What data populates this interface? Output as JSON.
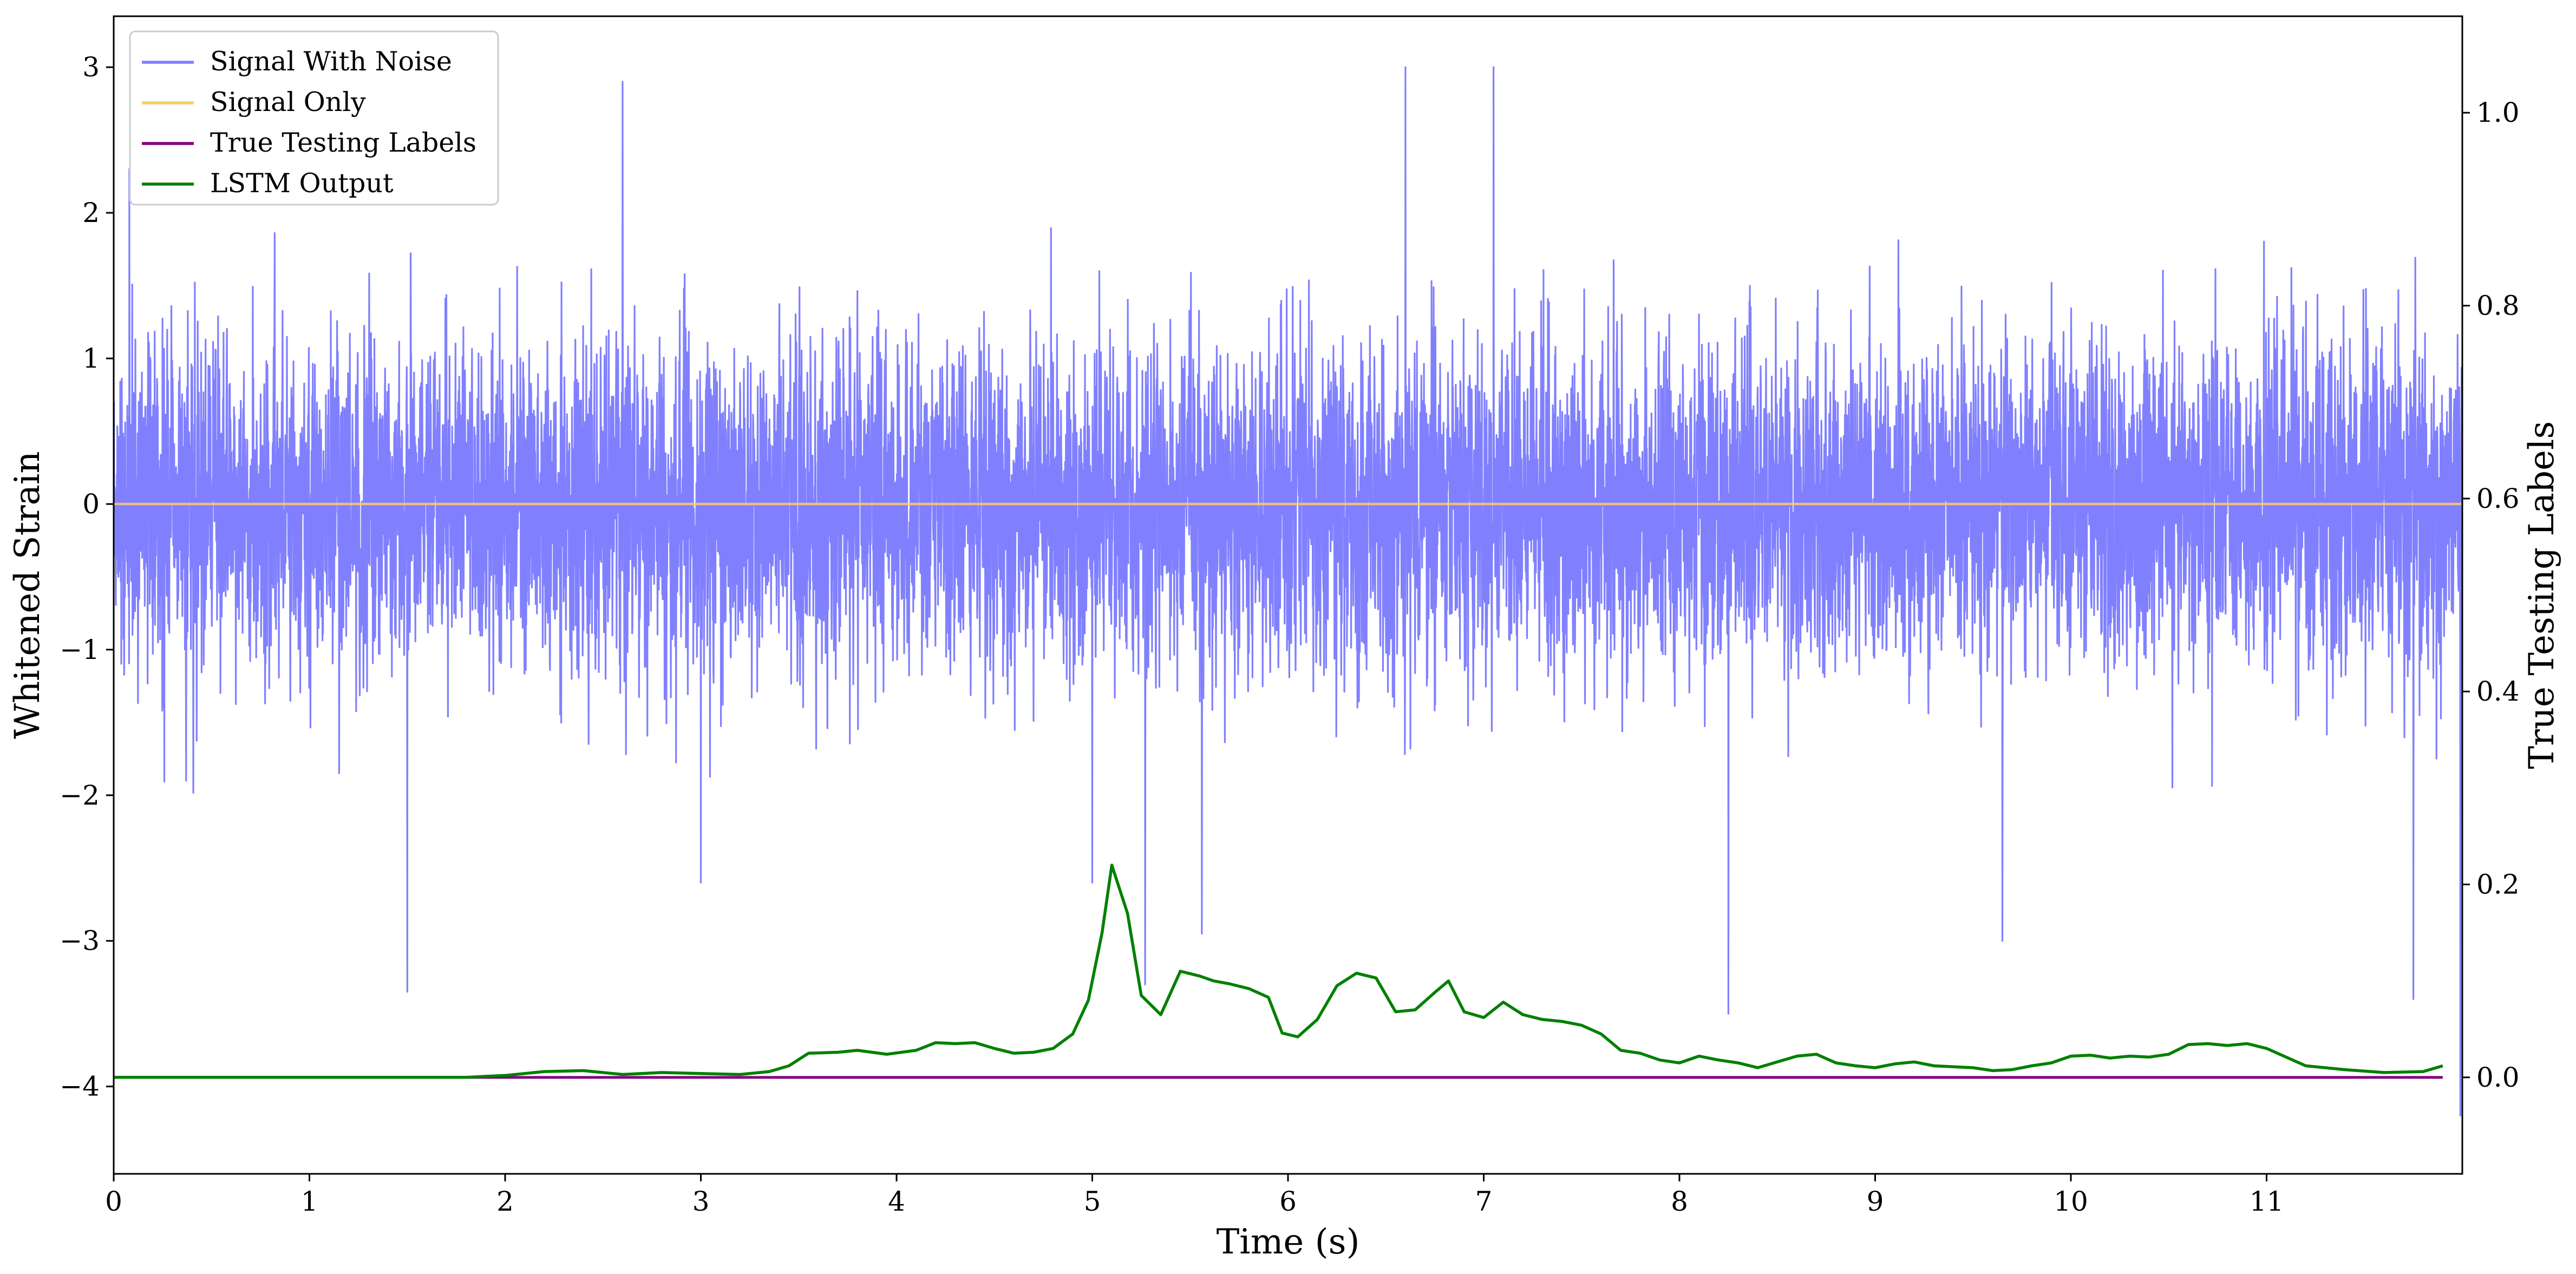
{
  "chart_data": {
    "type": "line",
    "xlabel": "Time (s)",
    "ylabel": "Whitened Strain",
    "ylabel_right": "True Testing Labels",
    "xlim": [
      0,
      12.0
    ],
    "ylim": [
      -4.6,
      3.35
    ],
    "ylim_right": [
      -0.1,
      1.1
    ],
    "x_ticks": [
      0,
      1,
      2,
      3,
      4,
      5,
      6,
      7,
      8,
      9,
      10,
      11
    ],
    "y_ticks": [
      3,
      2,
      1,
      0,
      -1,
      -2,
      -3,
      -4
    ],
    "y_tick_labels": [
      "3",
      "2",
      "1",
      "0",
      "−1",
      "−2",
      "−3",
      "−4"
    ],
    "y_ticks_right": [
      1.0,
      0.8,
      0.6,
      0.4,
      0.2,
      0.0
    ],
    "y_tick_labels_right": [
      "1.0",
      "0.8",
      "0.6",
      "0.4",
      "0.2",
      "0.0"
    ],
    "grid": false,
    "legend_position": "top-left",
    "series": [
      {
        "name": "Signal With Noise",
        "axis": "left",
        "color": "#8080ff",
        "description_values": "dense noise centered at 0, typical amplitude about ±1.3 with peaks near ±3",
        "typical_std": 0.55,
        "peaks": [
          {
            "x": 0.08,
            "y": 2.3
          },
          {
            "x": 0.37,
            "y": -1.9
          },
          {
            "x": 1.5,
            "y": -3.35
          },
          {
            "x": 2.6,
            "y": 2.9
          },
          {
            "x": 3.0,
            "y": -2.6
          },
          {
            "x": 3.46,
            "y": -0.2
          },
          {
            "x": 5.0,
            "y": -2.6
          },
          {
            "x": 5.27,
            "y": -3.3
          },
          {
            "x": 5.56,
            "y": -2.95
          },
          {
            "x": 6.6,
            "y": 3.0
          },
          {
            "x": 7.05,
            "y": 3.0
          },
          {
            "x": 8.25,
            "y": -3.5
          },
          {
            "x": 9.65,
            "y": -3.0
          },
          {
            "x": 11.75,
            "y": -3.4
          },
          {
            "x": 11.99,
            "y": -4.2
          }
        ]
      },
      {
        "name": "Signal Only",
        "axis": "left",
        "color": "#ffcc66",
        "x": [
          0,
          12.0
        ],
        "y": [
          0,
          0
        ]
      },
      {
        "name": "True Testing Labels",
        "axis": "right",
        "color": "#800080",
        "x": [
          0,
          11.9
        ],
        "y": [
          0.0,
          0.0
        ]
      },
      {
        "name": "LSTM Output",
        "axis": "right",
        "color": "#008000",
        "x": [
          0.0,
          1.0,
          1.8,
          2.0,
          2.2,
          2.4,
          2.6,
          2.8,
          3.0,
          3.2,
          3.35,
          3.45,
          3.55,
          3.7,
          3.8,
          3.95,
          4.1,
          4.2,
          4.3,
          4.4,
          4.5,
          4.6,
          4.7,
          4.8,
          4.9,
          4.98,
          5.05,
          5.1,
          5.18,
          5.25,
          5.35,
          5.45,
          5.55,
          5.62,
          5.7,
          5.8,
          5.9,
          5.97,
          6.05,
          6.15,
          6.25,
          6.35,
          6.45,
          6.55,
          6.65,
          6.75,
          6.82,
          6.9,
          7.0,
          7.1,
          7.2,
          7.3,
          7.4,
          7.5,
          7.6,
          7.7,
          7.8,
          7.9,
          8.0,
          8.1,
          8.2,
          8.3,
          8.4,
          8.5,
          8.6,
          8.7,
          8.8,
          8.9,
          9.0,
          9.1,
          9.2,
          9.3,
          9.4,
          9.5,
          9.6,
          9.7,
          9.8,
          9.9,
          10.0,
          10.1,
          10.2,
          10.3,
          10.4,
          10.5,
          10.6,
          10.7,
          10.8,
          10.9,
          11.0,
          11.2,
          11.4,
          11.6,
          11.8,
          11.9
        ],
        "y": [
          0.0,
          0.0,
          0.0,
          0.002,
          0.006,
          0.007,
          0.003,
          0.005,
          0.004,
          0.003,
          0.006,
          0.012,
          0.025,
          0.026,
          0.028,
          0.024,
          0.028,
          0.036,
          0.035,
          0.036,
          0.03,
          0.025,
          0.026,
          0.03,
          0.045,
          0.08,
          0.15,
          0.22,
          0.17,
          0.085,
          0.065,
          0.11,
          0.105,
          0.1,
          0.097,
          0.092,
          0.083,
          0.046,
          0.042,
          0.06,
          0.095,
          0.108,
          0.103,
          0.068,
          0.07,
          0.088,
          0.1,
          0.068,
          0.062,
          0.078,
          0.065,
          0.06,
          0.058,
          0.054,
          0.045,
          0.028,
          0.025,
          0.018,
          0.015,
          0.022,
          0.018,
          0.015,
          0.01,
          0.016,
          0.022,
          0.024,
          0.015,
          0.012,
          0.01,
          0.014,
          0.016,
          0.012,
          0.011,
          0.01,
          0.007,
          0.008,
          0.012,
          0.015,
          0.022,
          0.023,
          0.02,
          0.022,
          0.021,
          0.024,
          0.034,
          0.035,
          0.033,
          0.035,
          0.03,
          0.012,
          0.008,
          0.005,
          0.006,
          0.012
        ]
      }
    ]
  }
}
